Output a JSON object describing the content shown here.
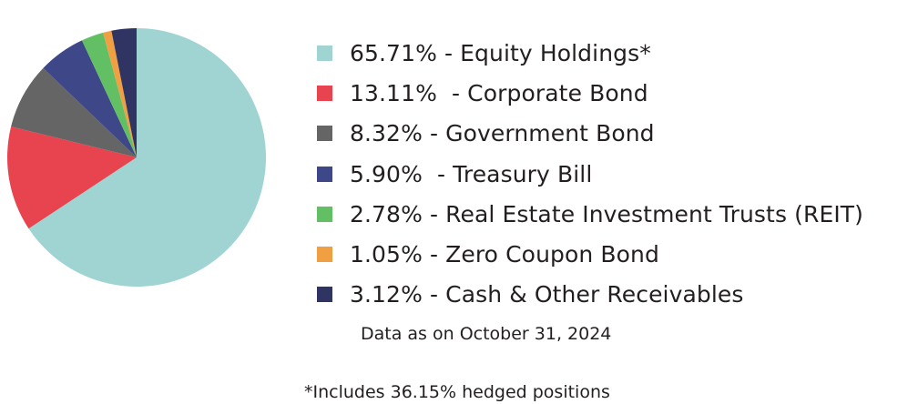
{
  "chart_data": {
    "type": "pie",
    "slices": [
      {
        "label": "65.71% - Equity Holdings*",
        "value": 65.71,
        "color": "#9fd4d3"
      },
      {
        "label": "13.11%  - Corporate Bond",
        "value": 13.11,
        "color": "#e84450"
      },
      {
        "label": "8.32% - Government Bond",
        "value": 8.32,
        "color": "#656565"
      },
      {
        "label": "5.90%  - Treasury Bill",
        "value": 5.9,
        "color": "#3e4787"
      },
      {
        "label": "2.78% - Real Estate Investment Trusts (REIT)",
        "value": 2.78,
        "color": "#63bf63"
      },
      {
        "label": "1.05% - Zero Coupon Bond",
        "value": 1.05,
        "color": "#f0a042"
      },
      {
        "label": "3.12% - Cash & Other Receivables",
        "value": 3.12,
        "color": "#2f3463"
      }
    ],
    "start_angle_deg": 0,
    "direction": "clockwise",
    "legend_position": "right"
  },
  "notes": {
    "data_date": "Data as on October 31, 2024",
    "footnote": "*Includes 36.15% hedged positions"
  }
}
